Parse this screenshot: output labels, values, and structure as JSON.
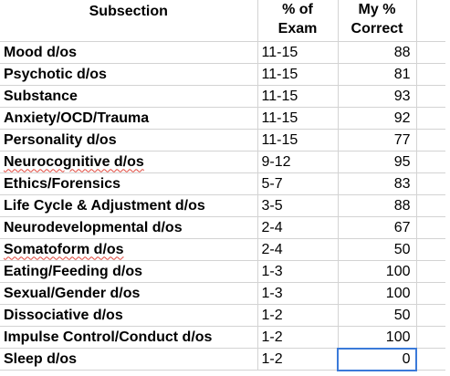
{
  "headers": {
    "subsection": "Subsection",
    "exam_line1": "% of",
    "exam_line2": "Exam",
    "correct_line1": "My %",
    "correct_line2": "Correct"
  },
  "rows": [
    {
      "subsection": "Mood d/os",
      "exam": "11-15",
      "correct": "88"
    },
    {
      "subsection": "Psychotic d/os",
      "exam": "11-15",
      "correct": "81"
    },
    {
      "subsection": "Substance",
      "exam": "11-15",
      "correct": "93"
    },
    {
      "subsection": "Anxiety/OCD/Trauma",
      "exam": "11-15",
      "correct": "92"
    },
    {
      "subsection": "Personality d/os",
      "exam": "11-15",
      "correct": "77"
    },
    {
      "subsection": "Neurocognitive d/os",
      "exam": "9-12",
      "correct": "95",
      "spellcheck": true
    },
    {
      "subsection": "Ethics/Forensics",
      "exam": "5-7",
      "correct": "83"
    },
    {
      "subsection": "Life Cycle & Adjustment d/os",
      "exam": "3-5",
      "correct": "88"
    },
    {
      "subsection": "Neurodevelopmental d/os",
      "exam": "2-4",
      "correct": "67"
    },
    {
      "subsection": "Somatoform d/os",
      "exam": "2-4",
      "correct": "50",
      "spellcheck": true
    },
    {
      "subsection": "Eating/Feeding d/os",
      "exam": "1-3",
      "correct": "100"
    },
    {
      "subsection": "Sexual/Gender d/os",
      "exam": "1-3",
      "correct": "100"
    },
    {
      "subsection": "Dissociative d/os",
      "exam": "1-2",
      "correct": "50"
    },
    {
      "subsection": "Impulse Control/Conduct d/os",
      "exam": "1-2",
      "correct": "100"
    },
    {
      "subsection": "Sleep d/os",
      "exam": "1-2",
      "correct": "0",
      "selected": true
    }
  ],
  "colors": {
    "gridline": "#d3d3d3",
    "selection": "#3b7ad9",
    "spellcheck": "#e0463b"
  }
}
